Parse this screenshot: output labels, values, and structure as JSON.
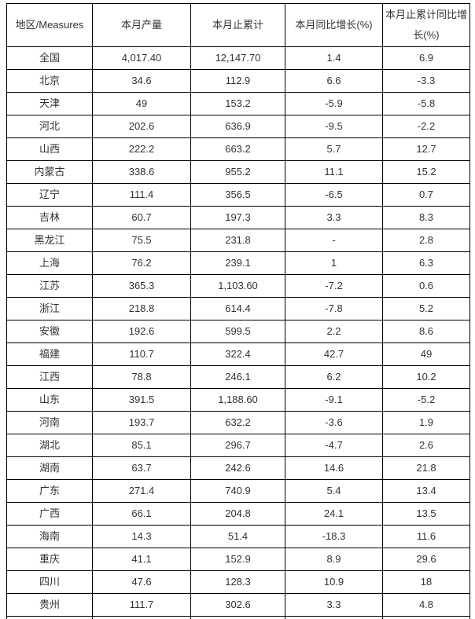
{
  "table": {
    "columns": [
      "地区/Measures",
      "本月产量",
      "本月止累计",
      "本月同比增长(%)",
      "本月止累计同比增长(%)"
    ],
    "rows": [
      [
        "全国",
        "4,017.40",
        "12,147.70",
        "1.4",
        "6.9"
      ],
      [
        "北京",
        "34.6",
        "112.9",
        "6.6",
        "-3.3"
      ],
      [
        "天津",
        "49",
        "153.2",
        "-5.9",
        "-5.8"
      ],
      [
        "河北",
        "202.6",
        "636.9",
        "-9.5",
        "-2.2"
      ],
      [
        "山西",
        "222.2",
        "663.2",
        "5.7",
        "12.7"
      ],
      [
        "内蒙古",
        "338.6",
        "955.2",
        "11.1",
        "15.2"
      ],
      [
        "辽宁",
        "111.4",
        "356.5",
        "-6.5",
        "0.7"
      ],
      [
        "吉林",
        "60.7",
        "197.3",
        "3.3",
        "8.3"
      ],
      [
        "黑龙江",
        "75.5",
        "231.8",
        "-",
        "2.8"
      ],
      [
        "上海",
        "76.2",
        "239.1",
        "1",
        "6.3"
      ],
      [
        "江苏",
        "365.3",
        "1,103.60",
        "-7.2",
        "0.6"
      ],
      [
        "浙江",
        "218.8",
        "614.4",
        "-7.8",
        "5.2"
      ],
      [
        "安徽",
        "192.6",
        "599.5",
        "2.2",
        "8.6"
      ],
      [
        "福建",
        "110.7",
        "322.4",
        "42.7",
        "49"
      ],
      [
        "江西",
        "78.8",
        "246.1",
        "6.2",
        "10.2"
      ],
      [
        "山东",
        "391.5",
        "1,188.60",
        "-9.1",
        "-5.2"
      ],
      [
        "河南",
        "193.7",
        "632.2",
        "-3.6",
        "1.9"
      ],
      [
        "湖北",
        "85.1",
        "296.7",
        "-4.7",
        "2.6"
      ],
      [
        "湖南",
        "63.7",
        "242.6",
        "14.6",
        "21.8"
      ],
      [
        "广东",
        "271.4",
        "740.9",
        "5.4",
        "13.4"
      ],
      [
        "广西",
        "66.1",
        "204.8",
        "24.1",
        "13.5"
      ],
      [
        "海南",
        "14.3",
        "51.4",
        "-18.3",
        "11.6"
      ],
      [
        "重庆",
        "41.1",
        "152.9",
        "8.9",
        "29.6"
      ],
      [
        "四川",
        "47.6",
        "128.3",
        "10.9",
        "18"
      ],
      [
        "贵州",
        "111.7",
        "302.6",
        "3.3",
        "4.8"
      ],
      [
        "",
        "",
        "",
        "",
        ""
      ]
    ]
  }
}
